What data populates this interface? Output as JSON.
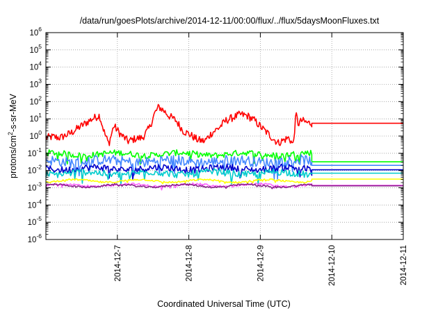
{
  "chart_data": {
    "type": "line",
    "title": "/data/run/goesPlots/archive/2014-12-11/00:00/flux/../flux/5daysMoonFluxes.txt",
    "xlabel": "Coordinated Universal Time (UTC)",
    "ylabel_base": "protons/cm",
    "ylabel_sup": "2",
    "ylabel_tail": "-s-sr-MeV",
    "x_ticks": [
      "2014-12-7",
      "2014-12-8",
      "2014-12-9",
      "2014-12-10",
      "2014-12-11"
    ],
    "x_tick_values": [
      1,
      2,
      3,
      4,
      5
    ],
    "xlim": [
      0,
      5
    ],
    "x_unit": "days since 2014-12-6 00:00 UTC",
    "yscale": "log",
    "ylim_exponents": [
      -6,
      6
    ],
    "y_tick_labels": [
      "-6",
      "-5",
      "-4",
      "-3",
      "-2",
      "-1",
      "0",
      "1",
      "2",
      "3",
      "4",
      "5",
      "6"
    ],
    "grid": true,
    "grid_style": "dotted",
    "data_end_x": 3.72,
    "series": [
      {
        "color": "#ff0000",
        "constant_after": 5.5,
        "anchors": [
          [
            0.0,
            0.8
          ],
          [
            0.1,
            0.9
          ],
          [
            0.2,
            0.8
          ],
          [
            0.35,
            1.5
          ],
          [
            0.5,
            4
          ],
          [
            0.65,
            10
          ],
          [
            0.75,
            16
          ],
          [
            0.82,
            1.5
          ],
          [
            0.88,
            0.35
          ],
          [
            0.95,
            4
          ],
          [
            1.05,
            1.2
          ],
          [
            1.15,
            0.5
          ],
          [
            1.25,
            0.7
          ],
          [
            1.35,
            0.8
          ],
          [
            1.45,
            3
          ],
          [
            1.52,
            20
          ],
          [
            1.58,
            50
          ],
          [
            1.65,
            30
          ],
          [
            1.72,
            15
          ],
          [
            1.82,
            8
          ],
          [
            1.92,
            2
          ],
          [
            2.02,
            1.2
          ],
          [
            2.12,
            0.6
          ],
          [
            2.22,
            0.5
          ],
          [
            2.32,
            1.5
          ],
          [
            2.42,
            3
          ],
          [
            2.52,
            8
          ],
          [
            2.62,
            12
          ],
          [
            2.72,
            18
          ],
          [
            2.82,
            15
          ],
          [
            2.92,
            8
          ],
          [
            3.02,
            3
          ],
          [
            3.1,
            1.5
          ],
          [
            3.18,
            0.7
          ],
          [
            3.25,
            0.4
          ],
          [
            3.33,
            0.6
          ],
          [
            3.4,
            0.8
          ],
          [
            3.46,
            0.3
          ],
          [
            3.5,
            20
          ],
          [
            3.53,
            5
          ],
          [
            3.58,
            8
          ],
          [
            3.65,
            6
          ],
          [
            3.72,
            5.5
          ]
        ],
        "noise": 0.45,
        "noise_len": 0.02
      },
      {
        "color": "#00ff00",
        "constant_after": 0.032,
        "base": 0.09,
        "noise": 0.35
      },
      {
        "color": "#4488ff",
        "constant_after": 0.02,
        "base": 0.035,
        "noise": 0.6
      },
      {
        "color": "#0000cc",
        "constant_after": 0.011,
        "base": 0.013,
        "noise": 0.4
      },
      {
        "color": "#00cccc",
        "constant_after": 0.007,
        "base": 0.007,
        "noise": 0.4
      },
      {
        "color": "#ffff00",
        "constant_after": 0.0032,
        "base": 0.0025,
        "noise": 0.1
      },
      {
        "color": "#ff66ff",
        "constant_after": 0.0014,
        "base": 0.0014,
        "noise": 0.12
      },
      {
        "color": "#882288",
        "constant_after": 0.0013,
        "base": 0.0013,
        "noise": 0.1
      }
    ]
  }
}
